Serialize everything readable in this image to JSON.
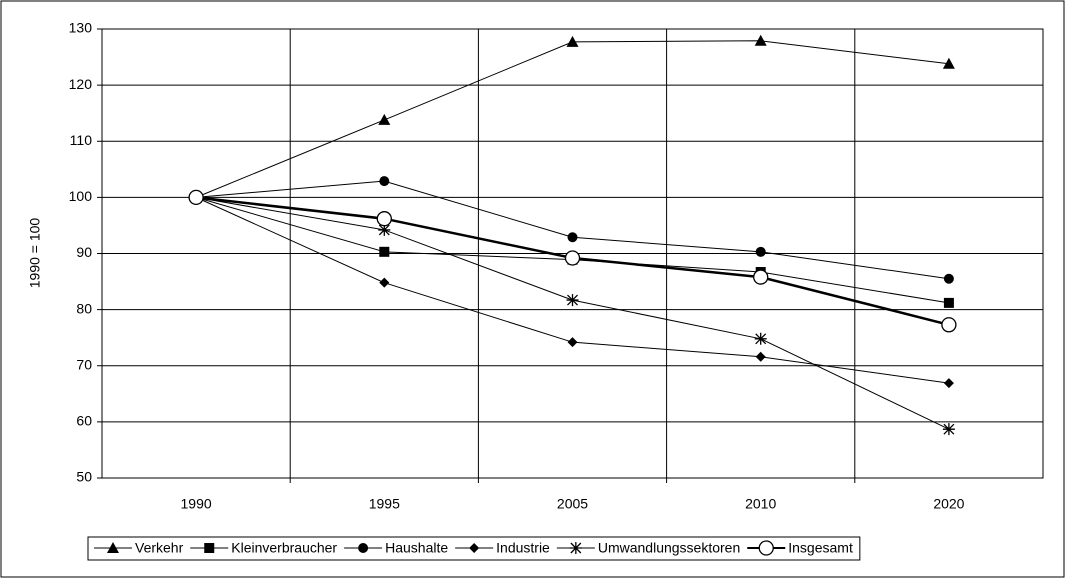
{
  "chart_data": {
    "type": "line",
    "y_label": "1990 = 100",
    "categories": [
      "1990",
      "1995",
      "2005",
      "2010",
      "2020"
    ],
    "series": [
      {
        "name": "Verkehr",
        "color": "#000000",
        "marker": "triangle",
        "values": [
          100,
          113.8,
          127.7,
          127.9,
          123.8
        ]
      },
      {
        "name": "Kleinverbraucher",
        "color": "#000000",
        "marker": "square",
        "values": [
          100,
          90.3,
          88.9,
          86.7,
          81.2
        ]
      },
      {
        "name": "Haushalte",
        "color": "#000000",
        "marker": "circle",
        "values": [
          100,
          102.9,
          92.9,
          90.3,
          85.5
        ]
      },
      {
        "name": "Industrie",
        "color": "#000000",
        "marker": "diamond",
        "values": [
          100,
          84.8,
          74.2,
          71.6,
          66.9
        ]
      },
      {
        "name": "Umwandlungssektoren",
        "color": "#000000",
        "marker": "asterisk",
        "values": [
          100,
          94.2,
          81.7,
          74.8,
          58.7
        ]
      },
      {
        "name": "Insgesamt",
        "color": "#000000",
        "marker": "open-circle",
        "values": [
          100,
          96.2,
          89.2,
          85.8,
          77.3
        ]
      }
    ],
    "ylim": [
      50,
      130
    ],
    "yticks": [
      50,
      60,
      70,
      80,
      90,
      100,
      110,
      120,
      130
    ],
    "grid": true,
    "legend": "bottom"
  }
}
